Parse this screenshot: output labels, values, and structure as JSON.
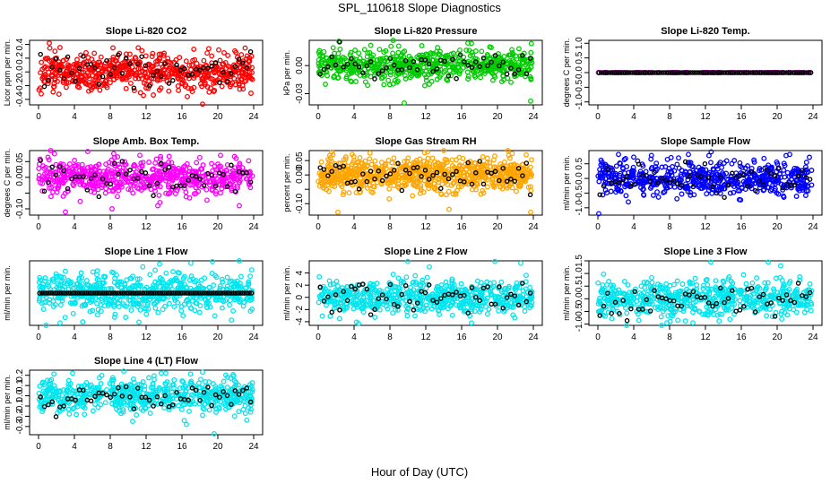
{
  "figure": {
    "title": "SPL_110618  Slope Diagnostics",
    "xlabel": "Hour of Day (UTC)"
  },
  "chart_data": [
    {
      "type": "scatter",
      "title": "Slope Li-820 CO2",
      "ylabel": "Licor ppm per min.",
      "color": "#ff0000",
      "xlim": [
        0,
        24
      ],
      "xticks": [
        "0",
        "4",
        "8",
        "12",
        "16",
        "20",
        "24"
      ],
      "ylim": [
        -0.48,
        0.46
      ],
      "yticks": [
        -0.4,
        -0.2,
        0.0,
        0.2,
        0.4
      ],
      "ytick_labels": [
        "-0.4",
        "-0.2",
        "0.0",
        "0.2",
        "0.4"
      ],
      "spread": 0.13,
      "pts": 620,
      "black": 55,
      "outliers": [
        [
          1.2,
          0.42
        ],
        [
          0.3,
          -0.32
        ],
        [
          20.1,
          0.32
        ],
        [
          16.6,
          -0.36
        ],
        [
          23.7,
          -0.31
        ],
        [
          18.3,
          -0.47
        ],
        [
          8.3,
          0.35
        ],
        [
          5.6,
          -0.28
        ]
      ]
    },
    {
      "type": "scatter",
      "title": "Slope Li-820 Pressure",
      "ylabel": "kPa per min.",
      "color": "#00cc00",
      "xlim": [
        0,
        24
      ],
      "xticks": [
        "0",
        "4",
        "8",
        "12",
        "16",
        "20",
        "24"
      ],
      "ylim": [
        -0.042,
        0.027
      ],
      "yticks": [
        -0.03,
        0.0
      ],
      "ytick_labels": [
        "-0.03",
        "0.00"
      ],
      "spread": 0.008,
      "pts": 620,
      "black": 55,
      "outliers": [
        [
          2.3,
          0.026
        ],
        [
          0.8,
          -0.02
        ],
        [
          9.6,
          -0.04
        ],
        [
          23.7,
          -0.038
        ],
        [
          12.4,
          -0.02
        ],
        [
          16.7,
          0.024
        ]
      ]
    },
    {
      "type": "scatter",
      "title": "Slope Li-820 Temp.",
      "ylabel": "degrees C per min.",
      "color": "#ff00ff",
      "xlim": [
        0,
        24
      ],
      "xticks": [
        "0",
        "4",
        "8",
        "12",
        "16",
        "20",
        "24"
      ],
      "ylim": [
        -1.1,
        1.1
      ],
      "yticks": [
        -1.0,
        -0.5,
        0.0,
        0.5,
        1.0
      ],
      "ytick_labels": [
        "-1.0",
        "-0.5",
        "0.0",
        "0.5",
        "1.0"
      ],
      "spread": 0.0,
      "pts": 96,
      "black": 96,
      "outliers": []
    },
    {
      "type": "scatter",
      "title": "Slope Amb. Box Temp.",
      "ylabel": "degrees C per min.",
      "color": "#ff00ff",
      "xlim": [
        0,
        24
      ],
      "xticks": [
        "0",
        "4",
        "8",
        "12",
        "16",
        "20",
        "24"
      ],
      "ylim": [
        -0.12,
        0.085
      ],
      "yticks": [
        -0.1,
        -0.05,
        0.0,
        0.05
      ],
      "ytick_labels": [
        "-0.10",
        "",
        "0.00",
        "0.05"
      ],
      "spread": 0.028,
      "pts": 620,
      "black": 55,
      "outliers": [
        [
          11.3,
          0.07
        ],
        [
          8.2,
          -0.1
        ],
        [
          3.0,
          -0.11
        ],
        [
          13.3,
          -0.09
        ],
        [
          20.3,
          0.07
        ],
        [
          22.4,
          -0.09
        ]
      ]
    },
    {
      "type": "scatter",
      "title": "Slope Gas Stream RH",
      "ylabel": "percent per min.",
      "color": "#ffa500",
      "xlim": [
        0,
        24
      ],
      "xticks": [
        "0",
        "4",
        "8",
        "12",
        "16",
        "20",
        "24"
      ],
      "ylim": [
        -0.14,
        0.085
      ],
      "yticks": [
        -0.1,
        -0.05,
        0.0,
        0.05
      ],
      "ytick_labels": [
        "-0.10",
        "",
        "0.00",
        "0.05"
      ],
      "spread": 0.028,
      "pts": 760,
      "black": 55,
      "outliers": [
        [
          1.5,
          0.08
        ],
        [
          2.2,
          -0.13
        ],
        [
          14.6,
          -0.12
        ],
        [
          23.7,
          -0.13
        ],
        [
          23.2,
          0.07
        ],
        [
          12.2,
          0.08
        ]
      ]
    },
    {
      "type": "scatter",
      "title": "Slope Sample Flow",
      "ylabel": "ml/min per min.",
      "color": "#0000ff",
      "xlim": [
        0,
        24
      ],
      "xticks": [
        "0",
        "4",
        "8",
        "12",
        "16",
        "20",
        "24"
      ],
      "ylim": [
        -1.25,
        0.95
      ],
      "yticks": [
        -1.0,
        -0.5,
        0.0,
        0.5
      ],
      "ytick_labels": [
        "-1.0",
        "-0.5",
        "0.0",
        "0.5"
      ],
      "spread": 0.28,
      "pts": 620,
      "black": 55,
      "outliers": [
        [
          0.1,
          -1.2
        ],
        [
          2.3,
          0.82
        ],
        [
          3.4,
          -0.8
        ],
        [
          9.0,
          0.7
        ],
        [
          10.1,
          0.82
        ],
        [
          21.0,
          0.78
        ],
        [
          23.6,
          0.72
        ]
      ]
    },
    {
      "type": "scatter",
      "title": "Slope Line 1 Flow",
      "ylabel": "ml/min per min.",
      "color": "#00e5ee",
      "xlim": [
        0,
        24
      ],
      "xticks": [
        "0",
        "4",
        "8",
        "12",
        "16",
        "20",
        "24"
      ],
      "ylim": [
        -2.0,
        2.0
      ],
      "yticks": [],
      "ytick_labels": [],
      "spread": 0.6,
      "pts": 620,
      "black": 96,
      "black_flat": true,
      "outliers": [
        [
          19.4,
          1.95
        ],
        [
          17.0,
          1.85
        ],
        [
          2.4,
          -1.85
        ],
        [
          11.2,
          -1.8
        ],
        [
          13.5,
          1.8
        ]
      ]
    },
    {
      "type": "scatter",
      "title": "Slope Line 2 Flow",
      "ylabel": "ml/min per min.",
      "color": "#00e5ee",
      "xlim": [
        0,
        24
      ],
      "xticks": [
        "0",
        "4",
        "8",
        "12",
        "16",
        "20",
        "24"
      ],
      "ylim": [
        -4.6,
        6.0
      ],
      "yticks": [
        -4,
        -2,
        0,
        2,
        4
      ],
      "ytick_labels": [
        "-4",
        "-2",
        "0",
        "2",
        "4"
      ],
      "spread": 1.3,
      "pts": 620,
      "black": 55,
      "outliers": [
        [
          10.0,
          5.9
        ],
        [
          22.6,
          5.6
        ],
        [
          19.7,
          5.9
        ],
        [
          17.1,
          -4.2
        ],
        [
          4.5,
          -4.3
        ],
        [
          12.4,
          5.0
        ]
      ]
    },
    {
      "type": "scatter",
      "title": "Slope Line 3 Flow",
      "ylabel": "ml/min per min.",
      "color": "#00e5ee",
      "xlim": [
        0,
        24
      ],
      "xticks": [
        "0",
        "4",
        "8",
        "12",
        "16",
        "20",
        "24"
      ],
      "ylim": [
        -1.05,
        1.5
      ],
      "yticks": [
        -1.0,
        -0.5,
        0.0,
        0.5,
        1.0,
        1.5
      ],
      "ytick_labels": [
        "-1.0",
        "-0.5",
        "0.0",
        "0.5",
        "1.0",
        "1.5"
      ],
      "spread": 0.35,
      "pts": 620,
      "black": 55,
      "outliers": [
        [
          12.6,
          1.45
        ],
        [
          19.0,
          1.45
        ],
        [
          20.4,
          1.3
        ],
        [
          10.6,
          -0.95
        ],
        [
          7.7,
          -0.95
        ]
      ]
    },
    {
      "type": "scatter",
      "title": "Slope Line 4 (LT) Flow",
      "ylabel": "ml/min per min.",
      "color": "#00e5ee",
      "xlim": [
        0,
        24
      ],
      "xticks": [
        "0",
        "4",
        "8",
        "12",
        "16",
        "20",
        "24"
      ],
      "ylim": [
        -0.38,
        0.25
      ],
      "yticks": [
        -0.3,
        -0.2,
        -0.1,
        0.0,
        0.1,
        0.2
      ],
      "ytick_labels": [
        "-0.3",
        "-0.2",
        "-0.1",
        "0.0",
        "0.1",
        "0.2"
      ],
      "spread": 0.08,
      "pts": 620,
      "black": 55,
      "outliers": [
        [
          19.6,
          -0.37
        ],
        [
          16.5,
          -0.28
        ],
        [
          10.5,
          -0.25
        ],
        [
          3.8,
          0.22
        ],
        [
          14.2,
          0.22
        ],
        [
          18.3,
          0.23
        ]
      ]
    }
  ]
}
